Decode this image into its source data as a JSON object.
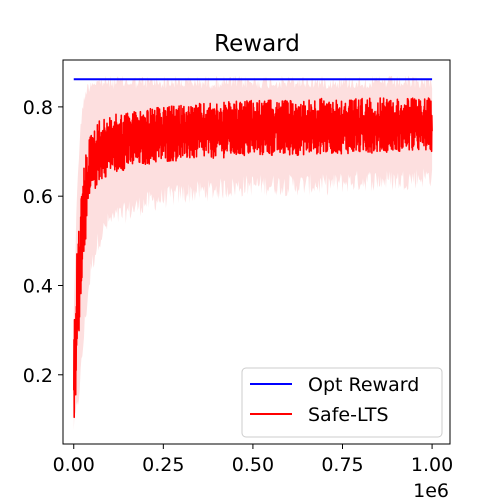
{
  "chart_data": {
    "type": "line",
    "title": "Reward",
    "xlabel": "",
    "ylabel": "",
    "x_offset_label": "1e6",
    "xlim": [
      -0.03,
      1.05
    ],
    "ylim": [
      0.045,
      0.905
    ],
    "x_ticks": [
      0.0,
      0.25,
      0.5,
      0.75,
      1.0
    ],
    "x_tick_labels": [
      "0.00",
      "0.25",
      "0.50",
      "0.75",
      "1.00"
    ],
    "y_ticks": [
      0.2,
      0.4,
      0.6,
      0.8
    ],
    "y_tick_labels": [
      "0.2",
      "0.4",
      "0.6",
      "0.8"
    ],
    "grid": false,
    "legend_position": "lower-right",
    "series": [
      {
        "name": "Opt Reward",
        "color": "#0000ff",
        "x": [
          0.0,
          1.0
        ],
        "y": [
          0.862,
          0.862
        ]
      },
      {
        "name": "Safe-LTS",
        "color": "#ff0000",
        "band_color": "#fdd9d9",
        "x": [
          0.0,
          0.005,
          0.01,
          0.02,
          0.03,
          0.04,
          0.05,
          0.07,
          0.1,
          0.15,
          0.2,
          0.25,
          0.3,
          0.4,
          0.5,
          0.6,
          0.7,
          0.8,
          0.9,
          1.0
        ],
        "y_low": [
          0.07,
          0.12,
          0.22,
          0.38,
          0.48,
          0.55,
          0.6,
          0.63,
          0.65,
          0.66,
          0.67,
          0.675,
          0.68,
          0.685,
          0.69,
          0.69,
          0.695,
          0.695,
          0.7,
          0.7
        ],
        "y_high": [
          0.3,
          0.4,
          0.5,
          0.6,
          0.68,
          0.72,
          0.75,
          0.77,
          0.78,
          0.79,
          0.795,
          0.8,
          0.805,
          0.81,
          0.815,
          0.815,
          0.82,
          0.82,
          0.82,
          0.82
        ],
        "band_low": [
          0.06,
          0.08,
          0.1,
          0.18,
          0.28,
          0.36,
          0.42,
          0.48,
          0.52,
          0.54,
          0.56,
          0.57,
          0.58,
          0.59,
          0.6,
          0.6,
          0.6,
          0.61,
          0.61,
          0.62
        ],
        "band_high": [
          0.36,
          0.5,
          0.65,
          0.78,
          0.84,
          0.86,
          0.87,
          0.87,
          0.87,
          0.87,
          0.87,
          0.87,
          0.87,
          0.87,
          0.87,
          0.87,
          0.87,
          0.87,
          0.87,
          0.87
        ]
      }
    ]
  }
}
